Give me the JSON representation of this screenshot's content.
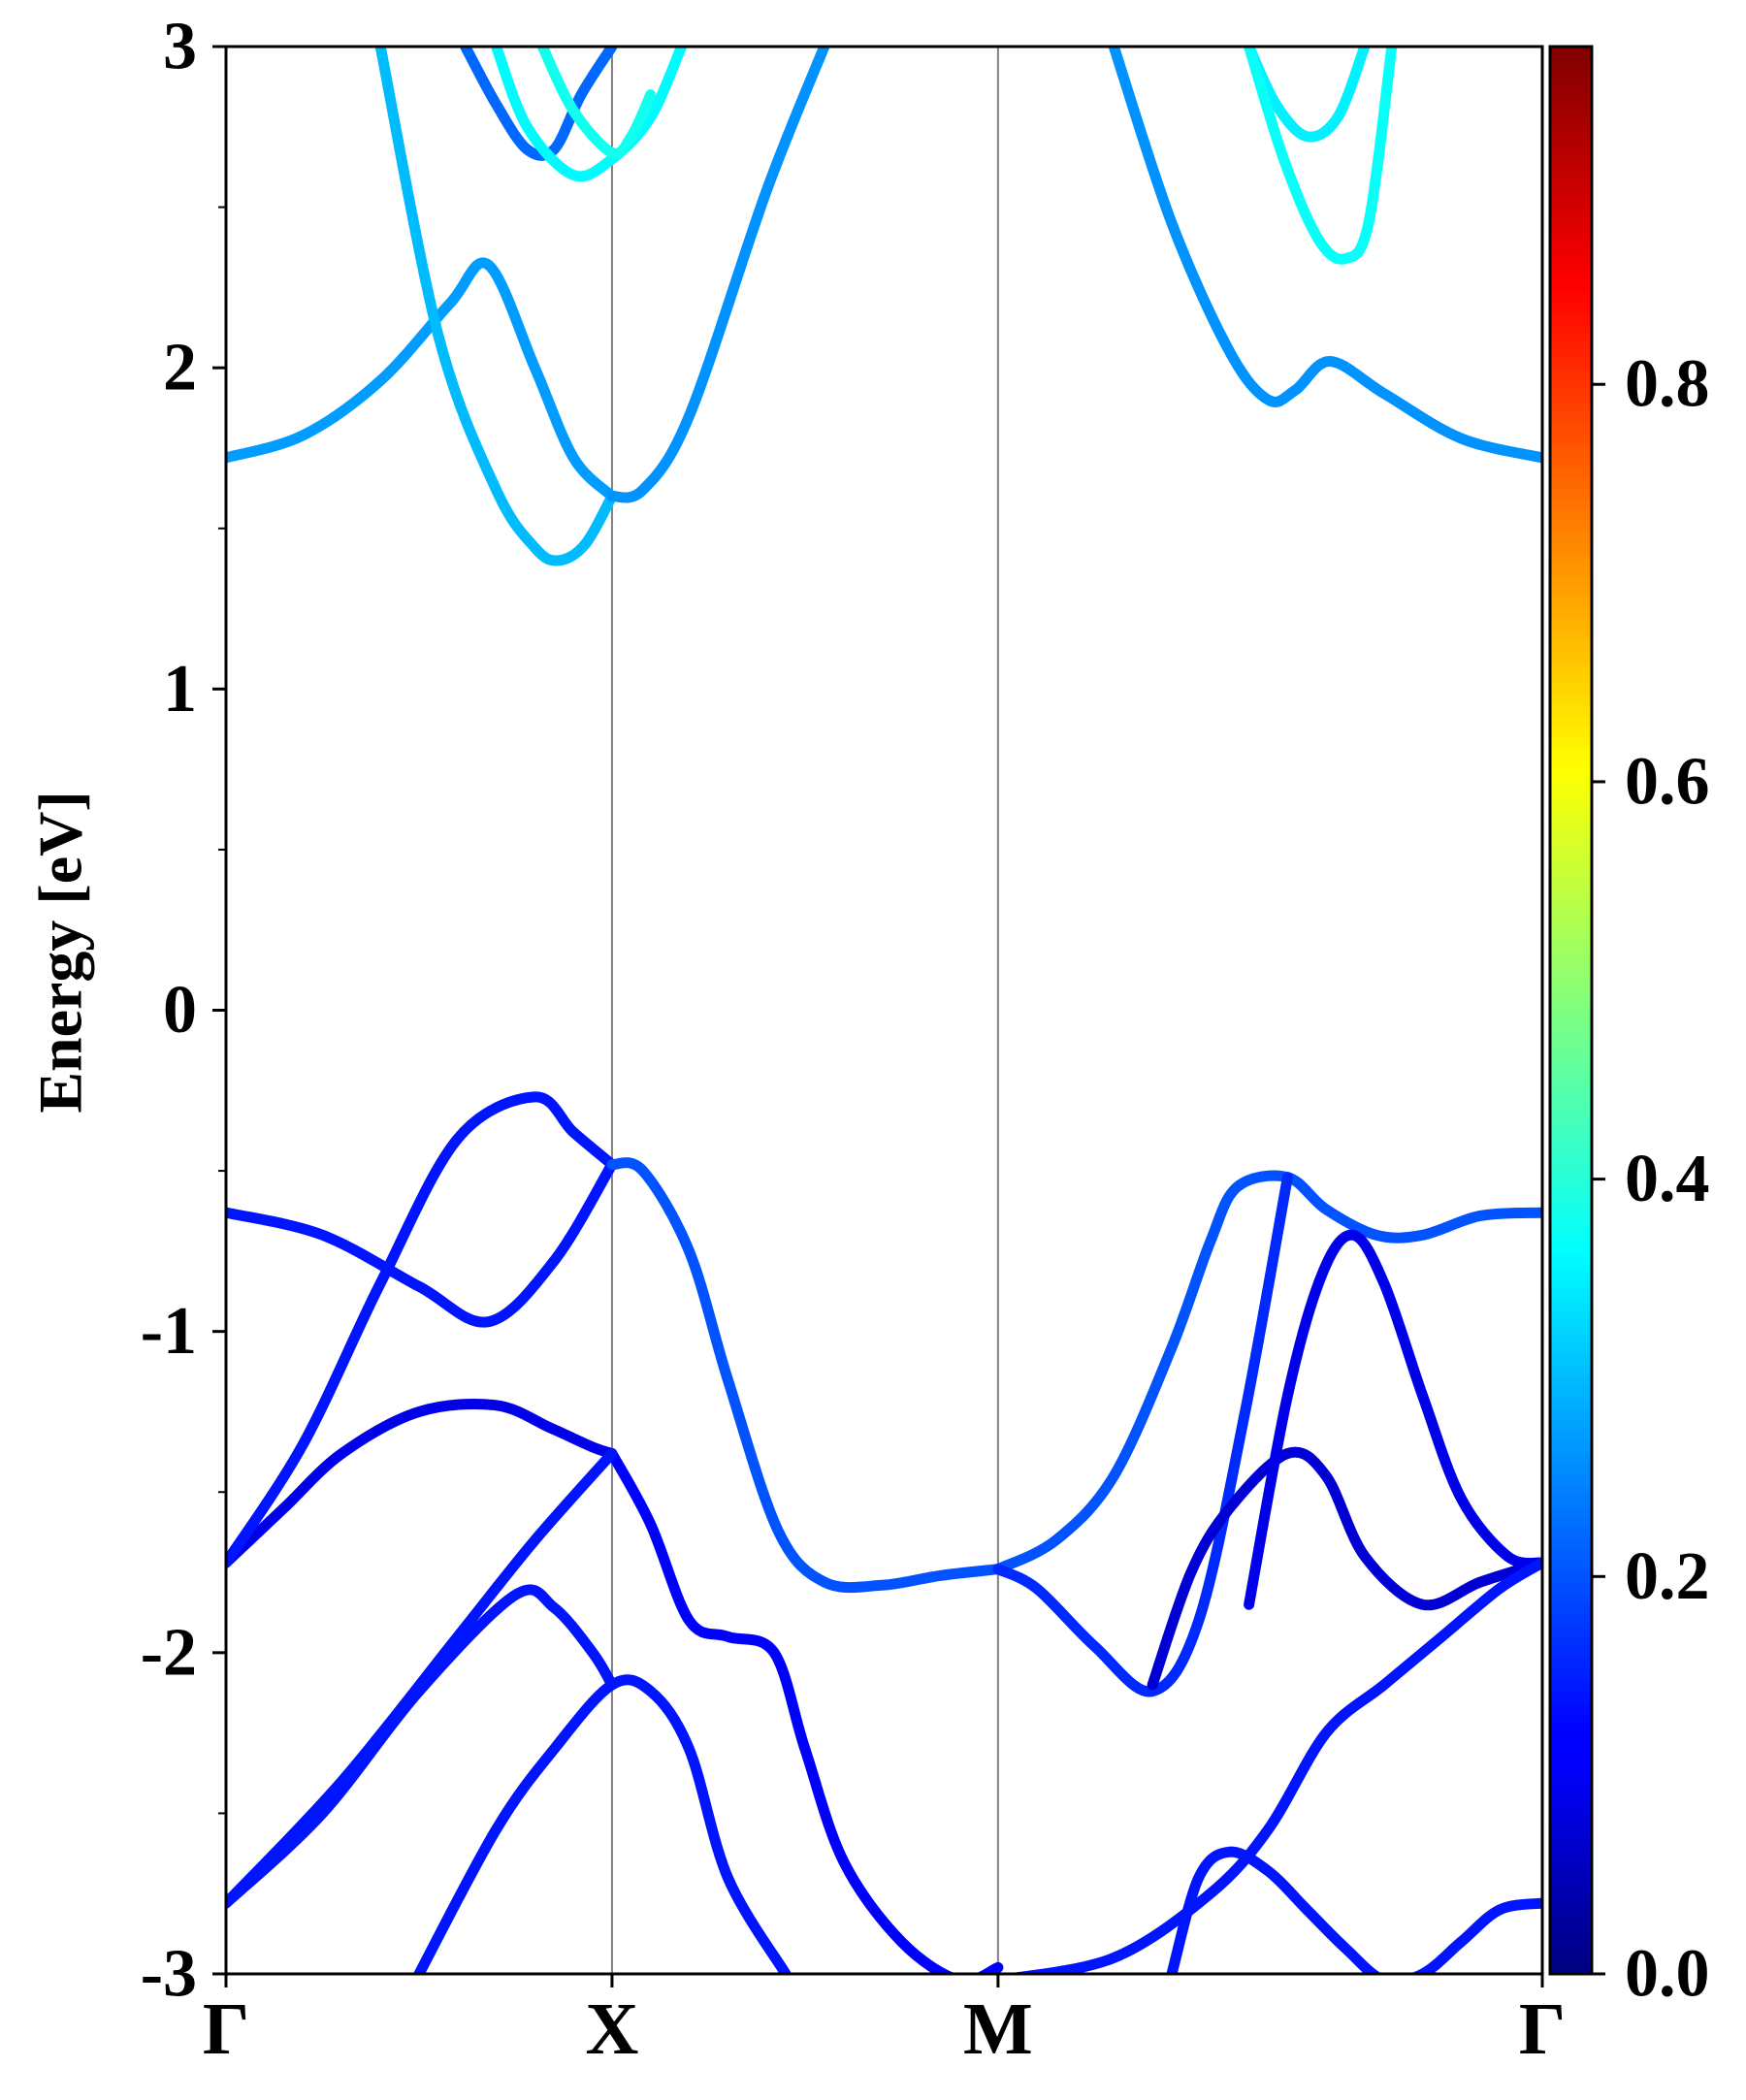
{
  "chart_data": {
    "type": "line",
    "title": "",
    "xlabel": "",
    "ylabel": "Energy [eV]",
    "ylim": [
      -3,
      3
    ],
    "yticks": [
      -3,
      -2,
      -1,
      0,
      1,
      2,
      3
    ],
    "yticks_minor": [
      -2.5,
      -1.5,
      -0.5,
      0.5,
      1.5,
      2.5
    ],
    "ytick_labels": [
      "-3",
      "-2",
      "-1",
      "0",
      "1",
      "2",
      "3"
    ],
    "x_range": [
      0,
      3.41
    ],
    "high_symmetry_points": [
      {
        "label": "Γ",
        "x": 0.0
      },
      {
        "label": "X",
        "x": 1.0
      },
      {
        "label": "M",
        "x": 2.0
      },
      {
        "label": "Γ",
        "x": 3.41
      }
    ],
    "grid": false,
    "colorbar": {
      "colormap": "jet",
      "vmin": 0.0,
      "vmax": 0.97,
      "ticks": [
        0.0,
        0.2,
        0.4,
        0.6,
        0.8
      ],
      "tick_labels": [
        "0.0",
        "0.2",
        "0.4",
        "0.6",
        "0.8"
      ]
    },
    "series": [
      {
        "weight": 0.27,
        "x": [
          0,
          0.2,
          0.4,
          0.58,
          0.68,
          0.8,
          0.9,
          1.0
        ],
        "y": [
          1.72,
          1.79,
          1.96,
          2.2,
          2.32,
          2.0,
          1.72,
          1.6
        ]
      },
      {
        "weight": 0.3,
        "x": [
          0.4,
          0.55,
          0.7,
          0.8,
          0.86,
          0.93,
          1.0
        ],
        "y": [
          3.0,
          2.1,
          1.62,
          1.44,
          1.4,
          1.45,
          1.6
        ]
      },
      {
        "weight": 0.26,
        "x": [
          1.0,
          1.08,
          1.2,
          1.4,
          1.55
        ],
        "y": [
          1.6,
          1.62,
          1.85,
          2.55,
          3.0
        ]
      },
      {
        "weight": 0.26,
        "x": [
          2.3,
          2.45,
          2.6,
          2.7,
          2.77,
          2.86,
          3.0,
          3.2,
          3.41
        ],
        "y": [
          3.0,
          2.45,
          2.05,
          1.9,
          1.93,
          2.02,
          1.92,
          1.78,
          1.72
        ]
      },
      {
        "weight": 0.22,
        "x": [
          0.62,
          0.7,
          0.78,
          0.85,
          0.92,
          1.0
        ],
        "y": [
          3.0,
          2.82,
          2.68,
          2.68,
          2.85,
          3.0
        ]
      },
      {
        "weight": 0.36,
        "x": [
          0.7,
          0.78,
          0.9,
          1.0,
          1.1,
          1.18
        ],
        "y": [
          3.0,
          2.75,
          2.6,
          2.65,
          2.78,
          3.0
        ]
      },
      {
        "weight": 0.38,
        "x": [
          0.82,
          0.9,
          1.0,
          1.05,
          1.1
        ],
        "y": [
          3.0,
          2.8,
          2.67,
          2.72,
          2.85
        ]
      },
      {
        "weight": 0.35,
        "x": [
          2.65,
          2.72,
          2.8,
          2.88,
          2.95
        ],
        "y": [
          3.0,
          2.82,
          2.72,
          2.78,
          3.0
        ]
      },
      {
        "weight": 0.37,
        "x": [
          2.65,
          2.74,
          2.83,
          2.9,
          2.96,
          3.02
        ],
        "y": [
          3.0,
          2.65,
          2.4,
          2.34,
          2.45,
          3.0
        ]
      },
      {
        "weight": 0.1,
        "x": [
          0,
          0.15,
          0.3,
          0.5,
          0.7,
          0.84,
          0.95,
          1.0
        ],
        "y": [
          -1.72,
          -1.55,
          -1.38,
          -1.25,
          -1.23,
          -1.3,
          -1.36,
          -1.38
        ]
      },
      {
        "weight": 0.14,
        "x": [
          0,
          0.2,
          0.4,
          0.6,
          0.8,
          0.9,
          1.0
        ],
        "y": [
          -1.72,
          -1.35,
          -0.85,
          -0.4,
          -0.27,
          -0.38,
          -0.48
        ]
      },
      {
        "weight": 0.14,
        "x": [
          0,
          0.25,
          0.5,
          0.68,
          0.85,
          1.0
        ],
        "y": [
          -0.63,
          -0.7,
          -0.86,
          -0.97,
          -0.78,
          -0.48
        ]
      },
      {
        "weight": 0.2,
        "x": [
          1.0,
          1.08,
          1.2,
          1.3,
          1.43,
          1.55,
          1.7,
          1.85,
          2.0
        ],
        "y": [
          -0.48,
          -0.5,
          -0.75,
          -1.15,
          -1.62,
          -1.78,
          -1.79,
          -1.76,
          -1.74
        ]
      },
      {
        "weight": 0.12,
        "x": [
          1.0,
          1.1,
          1.2,
          1.3,
          1.42,
          1.5,
          1.6,
          1.75,
          1.9,
          2.0
        ],
        "y": [
          -1.38,
          -1.6,
          -1.9,
          -1.95,
          -2.0,
          -2.3,
          -2.65,
          -2.9,
          -3.02,
          -2.98
        ]
      },
      {
        "weight": 0.14,
        "x": [
          0,
          0.25,
          0.5,
          0.75,
          0.85,
          0.95,
          1.0
        ],
        "y": [
          -2.78,
          -2.5,
          -2.12,
          -1.82,
          -1.86,
          -2.0,
          -2.1
        ]
      },
      {
        "weight": 0.14,
        "x": [
          0,
          0.3,
          0.6,
          0.8,
          1.0
        ],
        "y": [
          -2.78,
          -2.4,
          -1.95,
          -1.65,
          -1.38
        ]
      },
      {
        "weight": 0.14,
        "x": [
          0.5,
          0.7,
          0.85,
          1.0,
          1.1,
          1.2,
          1.3,
          1.45
        ],
        "y": [
          -3.0,
          -2.55,
          -2.3,
          -2.1,
          -2.12,
          -2.3,
          -2.7,
          -3.0
        ]
      },
      {
        "weight": 0.2,
        "x": [
          2.0,
          2.15,
          2.3,
          2.45,
          2.55,
          2.62,
          2.75,
          2.85,
          2.98,
          3.1,
          3.25,
          3.41
        ],
        "y": [
          -1.74,
          -1.65,
          -1.45,
          -1.05,
          -0.72,
          -0.55,
          -0.52,
          -0.62,
          -0.7,
          -0.7,
          -0.64,
          -0.63
        ]
      },
      {
        "weight": 0.16,
        "x": [
          2.0,
          2.1,
          2.25,
          2.4,
          2.52,
          2.64,
          2.75
        ],
        "y": [
          -1.74,
          -1.8,
          -1.98,
          -2.12,
          -1.9,
          -1.25,
          -0.52
        ]
      },
      {
        "weight": 0.08,
        "x": [
          2.4,
          2.5,
          2.6,
          2.75,
          2.85,
          2.95,
          3.1,
          3.25,
          3.41
        ],
        "y": [
          -2.1,
          -1.75,
          -1.55,
          -1.38,
          -1.45,
          -1.7,
          -1.85,
          -1.78,
          -1.72
        ]
      },
      {
        "weight": 0.1,
        "x": [
          2.65,
          2.75,
          2.84,
          2.92,
          3.0,
          3.1,
          3.2,
          3.32,
          3.41
        ],
        "y": [
          -1.85,
          -1.2,
          -0.82,
          -0.7,
          -0.85,
          -1.2,
          -1.52,
          -1.7,
          -1.72
        ]
      },
      {
        "weight": 0.14,
        "x": [
          2.0,
          2.3,
          2.55,
          2.7,
          2.85,
          3.0,
          3.15,
          3.3,
          3.41
        ],
        "y": [
          -3.02,
          -2.95,
          -2.75,
          -2.55,
          -2.25,
          -2.1,
          -1.95,
          -1.8,
          -1.72
        ]
      },
      {
        "weight": 0.14,
        "x": [
          2.45,
          2.52,
          2.6,
          2.7,
          2.8,
          2.9,
          3.0,
          3.1,
          3.2,
          3.3,
          3.41
        ],
        "y": [
          -3.0,
          -2.7,
          -2.62,
          -2.68,
          -2.8,
          -2.92,
          -3.02,
          -3.0,
          -2.9,
          -2.8,
          -2.78
        ]
      }
    ]
  }
}
